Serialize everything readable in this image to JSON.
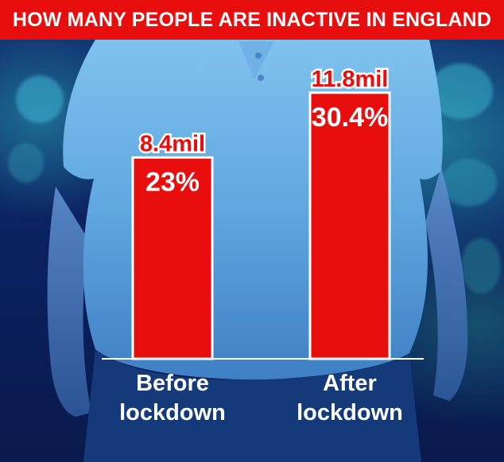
{
  "header": {
    "title": "HOW MANY PEOPLE ARE INACTIVE IN ENGLAND"
  },
  "colors": {
    "bar": "#e80e0e",
    "bar_border": "#ffffff",
    "title_background": "#e80e0e",
    "background": "#0b2160"
  },
  "chart_data": {
    "type": "bar",
    "title": "HOW MANY PEOPLE ARE INACTIVE IN ENGLAND",
    "categories": [
      "Before lockdown",
      "After lockdown"
    ],
    "category_lines": [
      [
        "Before",
        "lockdown"
      ],
      [
        "After",
        "lockdown"
      ]
    ],
    "values": [
      23,
      30.4
    ],
    "value_labels": [
      "23%",
      "30.4%"
    ],
    "top_labels": [
      "8.4mil",
      "11.8mil"
    ],
    "unit": "%",
    "ylim": [
      0,
      36
    ],
    "grid": false,
    "legend": "none"
  }
}
